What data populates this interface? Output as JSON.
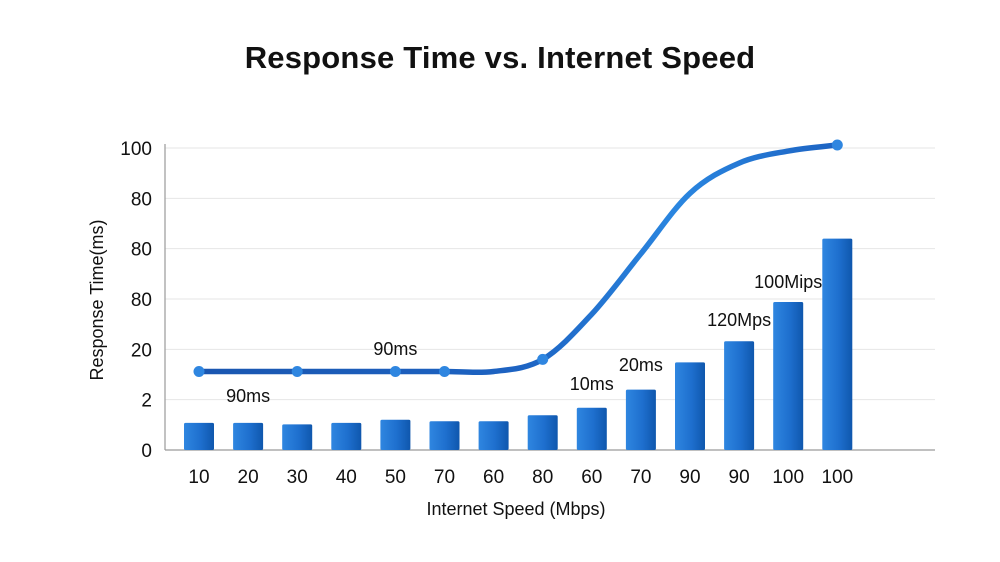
{
  "chart_data": {
    "type": "bar",
    "title": "Response Time vs. Internet Speed",
    "xlabel": "Internet Speed (Mbps)",
    "ylabel": "Response Time(ms)",
    "y_tick_labels": [
      "0",
      "2",
      "20",
      "80",
      "80",
      "80",
      "100"
    ],
    "categories": [
      "10",
      "20",
      "30",
      "40",
      "50",
      "70",
      "60",
      "80",
      "60",
      "70",
      "90",
      "90",
      "100",
      "100"
    ],
    "series": [
      {
        "type": "bar",
        "values": [
          9,
          9,
          8.5,
          9,
          10,
          9.5,
          9.5,
          11.5,
          14,
          20,
          29,
          36,
          49,
          70
        ]
      },
      {
        "type": "line",
        "markers_at": [
          0,
          2,
          4,
          5,
          7,
          13
        ],
        "values": [
          26,
          26,
          26,
          26,
          26,
          26,
          26,
          30,
          45,
          65,
          85,
          95,
          99,
          101
        ]
      }
    ],
    "annotations": [
      {
        "text": "90ms",
        "at": 1
      },
      {
        "text": "90ms",
        "at": 4
      },
      {
        "text": "10ms",
        "at": 8
      },
      {
        "text": "20ms",
        "at": 9
      },
      {
        "text": "120Mps",
        "at": 11
      },
      {
        "text": "100Mips",
        "at": 12
      }
    ],
    "ylim": [
      0,
      100
    ],
    "grid": true,
    "colors": {
      "bar": "#1e6fce",
      "bar_dark": "#0f57ad",
      "line": "#1c5fbf",
      "marker": "#2f86e0",
      "grid": "#e6e6e6",
      "axis": "#9a9a9a"
    }
  }
}
